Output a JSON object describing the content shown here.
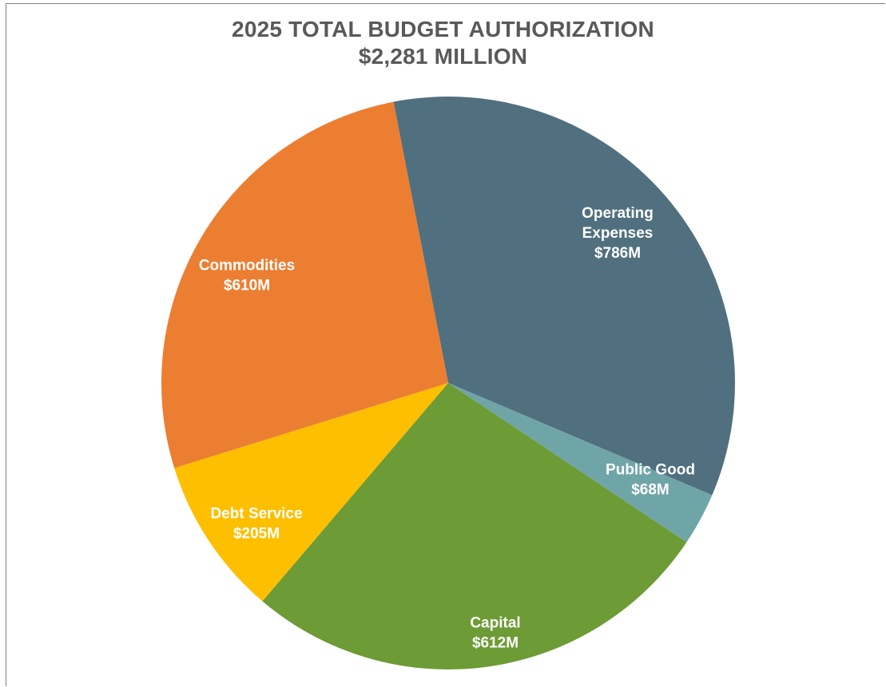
{
  "chart_data": {
    "type": "pie",
    "title": "2025 TOTAL BUDGET AUTHORIZATION",
    "subtitle": "$2,281 MILLION",
    "unit": "$M",
    "slices": [
      {
        "label": "Operating Expenses",
        "value": 786,
        "label_lines": [
          "Operating",
          "Expenses",
          "$786M"
        ],
        "color": "#51707f"
      },
      {
        "label": "Public Good",
        "value": 68,
        "label_lines": [
          "Public Good",
          "$68M"
        ],
        "color": "#70a5a8"
      },
      {
        "label": "Capital",
        "value": 612,
        "label_lines": [
          "Capital",
          "$612M"
        ],
        "color": "#6d9b35"
      },
      {
        "label": "Debt Service",
        "value": 205,
        "label_lines": [
          "Debt Service",
          "$205M"
        ],
        "color": "#fdbf00"
      },
      {
        "label": "Commodities",
        "value": 610,
        "label_lines": [
          "Commodities",
          "$610M"
        ],
        "color": "#ec7e32"
      }
    ]
  }
}
